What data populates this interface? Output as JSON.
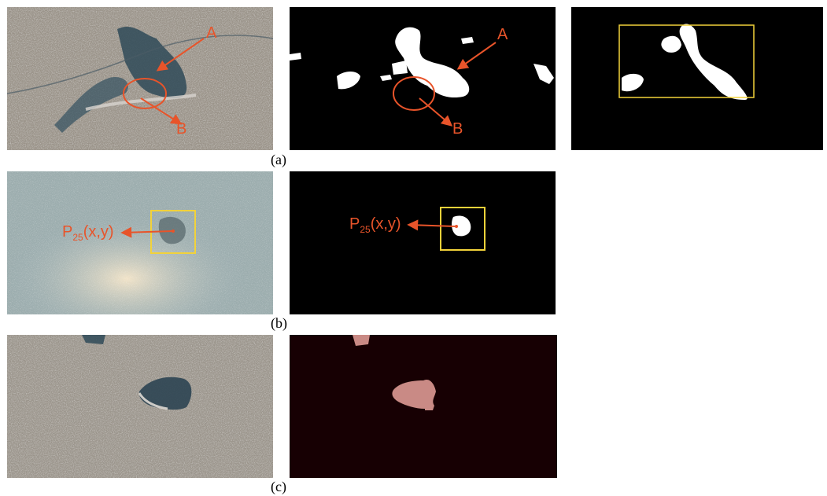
{
  "figure": {
    "rows": [
      {
        "caption": "(a)"
      },
      {
        "caption": "(b)"
      },
      {
        "caption": "(c)"
      }
    ],
    "annotations": {
      "label_a": "A",
      "label_b": "B",
      "point_main": "P",
      "point_sub": "25",
      "point_args": "(x,y)"
    },
    "colors": {
      "annotation": "#e8542a",
      "bbox": "#f2d23a",
      "mask_white": "#ffffff",
      "mask_pink": "#c98a85",
      "background_black": "#000000",
      "background_dark_red": "#170003"
    }
  }
}
